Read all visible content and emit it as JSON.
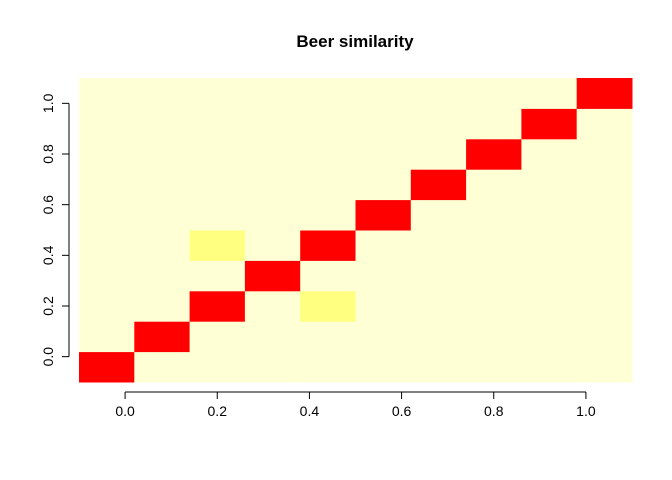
{
  "chart_data": {
    "type": "heatmap",
    "title": "Beer similarity",
    "xlabel": "",
    "ylabel": "",
    "xlim": [
      -0.1,
      1.1
    ],
    "ylim": [
      -0.1,
      1.1
    ],
    "x_ticks": [
      0.0,
      0.2,
      0.4,
      0.6,
      0.8,
      1.0
    ],
    "y_ticks": [
      0.0,
      0.2,
      0.4,
      0.6,
      0.8,
      1.0
    ],
    "x_tick_labels": [
      "0.0",
      "0.2",
      "0.4",
      "0.6",
      "0.8",
      "1.0"
    ],
    "y_tick_labels": [
      "0.0",
      "0.2",
      "0.4",
      "0.6",
      "0.8",
      "1.0"
    ],
    "grid": false,
    "n_rows": 10,
    "n_cols": 10,
    "colors": {
      "low": "#FFFFD5",
      "mid": "#FFFF80",
      "high": "#FF0000"
    },
    "matrix": [
      [
        1,
        0,
        0,
        0,
        0,
        0,
        0,
        0,
        0,
        0
      ],
      [
        0,
        1,
        0,
        0,
        0,
        0,
        0,
        0,
        0,
        0
      ],
      [
        0,
        0,
        1,
        0,
        0.5,
        0,
        0,
        0,
        0,
        0
      ],
      [
        0,
        0,
        0,
        1,
        0,
        0,
        0,
        0,
        0,
        0
      ],
      [
        0,
        0,
        0.5,
        0,
        1,
        0,
        0,
        0,
        0,
        0
      ],
      [
        0,
        0,
        0,
        0,
        0,
        1,
        0,
        0,
        0,
        0
      ],
      [
        0,
        0,
        0,
        0,
        0,
        0,
        1,
        0,
        0,
        0
      ],
      [
        0,
        0,
        0,
        0,
        0,
        0,
        0,
        1,
        0,
        0
      ],
      [
        0,
        0,
        0,
        0,
        0,
        0,
        0,
        0,
        1,
        0
      ],
      [
        0,
        0,
        0,
        0,
        0,
        0,
        0,
        0,
        0,
        1
      ]
    ]
  }
}
